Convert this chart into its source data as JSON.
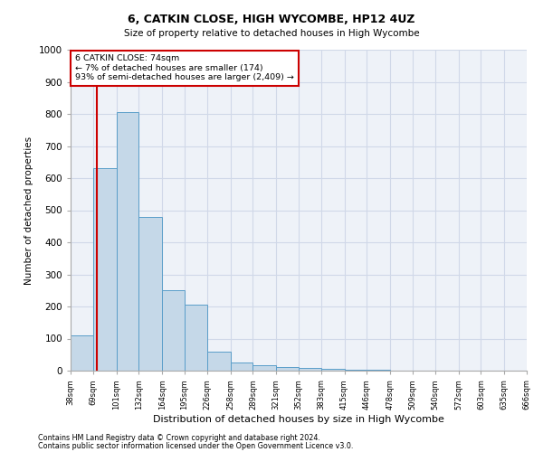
{
  "title": "6, CATKIN CLOSE, HIGH WYCOMBE, HP12 4UZ",
  "subtitle": "Size of property relative to detached houses in High Wycombe",
  "xlabel": "Distribution of detached houses by size in High Wycombe",
  "ylabel": "Number of detached properties",
  "footnote1": "Contains HM Land Registry data © Crown copyright and database right 2024.",
  "footnote2": "Contains public sector information licensed under the Open Government Licence v3.0.",
  "annotation_title": "6 CATKIN CLOSE: 74sqm",
  "annotation_line1": "← 7% of detached houses are smaller (174)",
  "annotation_line2": "93% of semi-detached houses are larger (2,409) →",
  "property_size": 74,
  "bar_edges": [
    38,
    69,
    101,
    132,
    164,
    195,
    226,
    258,
    289,
    321,
    352,
    383,
    415,
    446,
    478,
    509,
    540,
    572,
    603,
    635,
    666
  ],
  "bar_heights": [
    110,
    630,
    805,
    480,
    250,
    205,
    60,
    25,
    18,
    12,
    8,
    5,
    3,
    2,
    1,
    1,
    0,
    0,
    0,
    0
  ],
  "bar_color": "#c5d8e8",
  "bar_edge_color": "#5a9ec9",
  "red_line_color": "#cc0000",
  "annotation_box_color": "#cc0000",
  "grid_color": "#d0d8e8",
  "background_color": "#eef2f8",
  "ylim": [
    0,
    1000
  ],
  "yticks": [
    0,
    100,
    200,
    300,
    400,
    500,
    600,
    700,
    800,
    900,
    1000
  ]
}
